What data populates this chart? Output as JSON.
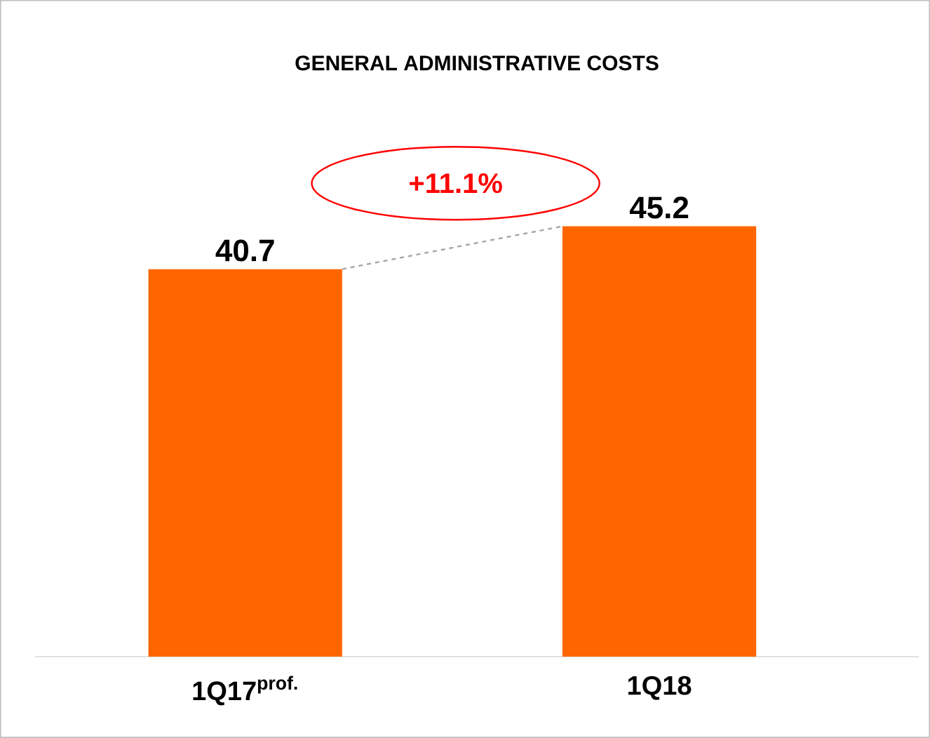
{
  "chart_data": {
    "type": "bar",
    "title": "GENERAL ADMINISTRATIVE COSTS",
    "categories": [
      "1Q17$^{prof.}$",
      "1Q18"
    ],
    "values": [
      40.7,
      45.2
    ],
    "color": "#ff6600",
    "data_labels": true,
    "annotations": [
      "+11.1%"
    ]
  }
}
